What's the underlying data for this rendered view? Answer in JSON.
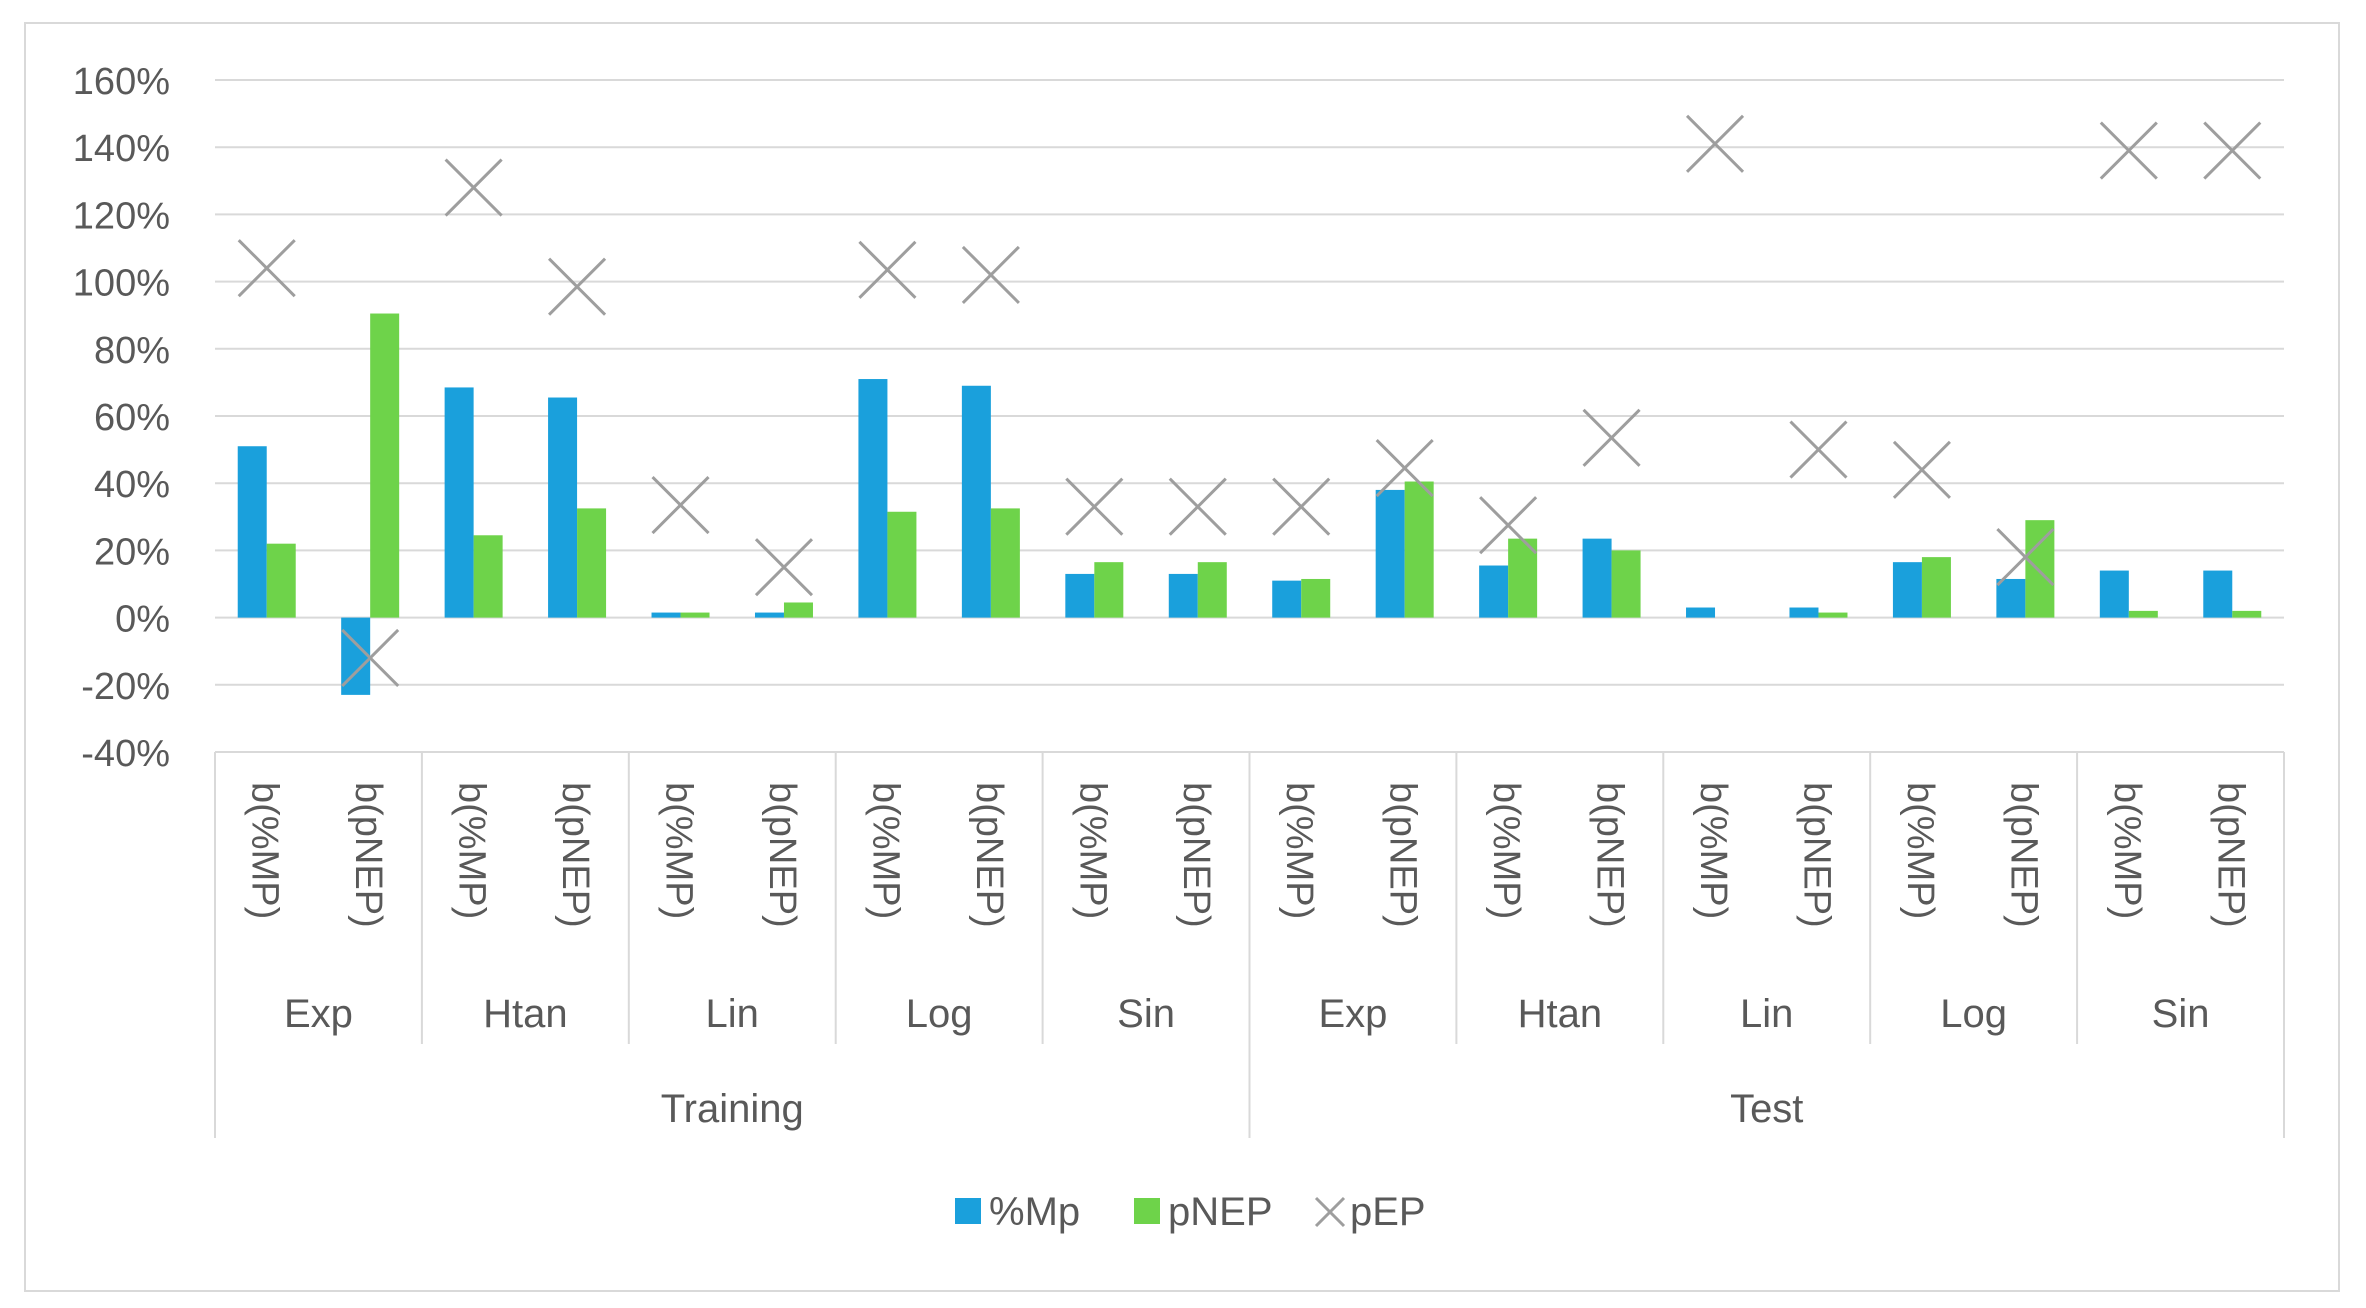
{
  "chart_data": {
    "type": "bar",
    "title": "",
    "xlabel": "",
    "ylabel": "",
    "ylim": [
      -0.4,
      1.6
    ],
    "yticks": [
      -0.4,
      -0.2,
      0,
      0.2,
      0.4,
      0.6,
      0.8,
      1.0,
      1.2,
      1.4,
      1.6
    ],
    "ytick_labels": [
      "-40%",
      "-20%",
      "0%",
      "20%",
      "40%",
      "60%",
      "80%",
      "100%",
      "120%",
      "140%",
      "160%"
    ],
    "grid": true,
    "legend_position": "bottom-center",
    "colors": {
      "mp": "#1aa0dc",
      "pnep": "#6ed34a",
      "pep": "#9e9e9e",
      "grid": "#d9d9d9",
      "axis": "#d9d9d9"
    },
    "groups": [
      "Training",
      "Test"
    ],
    "subgroups": [
      "Exp",
      "Htan",
      "Lin",
      "Log",
      "Sin",
      "Exp",
      "Htan",
      "Lin",
      "Log",
      "Sin"
    ],
    "categories": [
      "b(%MP)",
      "b(pNEP)",
      "b(%MP)",
      "b(pNEP)",
      "b(%MP)",
      "b(pNEP)",
      "b(%MP)",
      "b(pNEP)",
      "b(%MP)",
      "b(pNEP)",
      "b(%MP)",
      "b(pNEP)",
      "b(%MP)",
      "b(pNEP)",
      "b(%MP)",
      "b(pNEP)",
      "b(%MP)",
      "b(pNEP)",
      "b(%MP)",
      "b(pNEP)"
    ],
    "series": [
      {
        "name": "%Mp",
        "kind": "bar",
        "values": [
          0.51,
          -0.23,
          0.685,
          0.655,
          0.015,
          0.015,
          0.71,
          0.69,
          0.13,
          0.13,
          0.11,
          0.38,
          0.155,
          0.235,
          0.03,
          0.03,
          0.165,
          0.115,
          0.14,
          0.14
        ]
      },
      {
        "name": "pNEP",
        "kind": "bar",
        "values": [
          0.22,
          0.905,
          0.245,
          0.325,
          0.015,
          0.045,
          0.315,
          0.325,
          0.165,
          0.165,
          0.115,
          0.405,
          0.235,
          0.2,
          0.0,
          0.015,
          0.18,
          0.29,
          0.02,
          0.02
        ]
      },
      {
        "name": "pEP",
        "kind": "marker",
        "values": [
          1.04,
          -0.12,
          1.28,
          0.985,
          0.335,
          0.15,
          1.035,
          1.02,
          0.33,
          0.33,
          0.33,
          0.445,
          0.275,
          0.535,
          1.41,
          0.5,
          0.44,
          0.18,
          1.39,
          1.39
        ]
      }
    ]
  }
}
